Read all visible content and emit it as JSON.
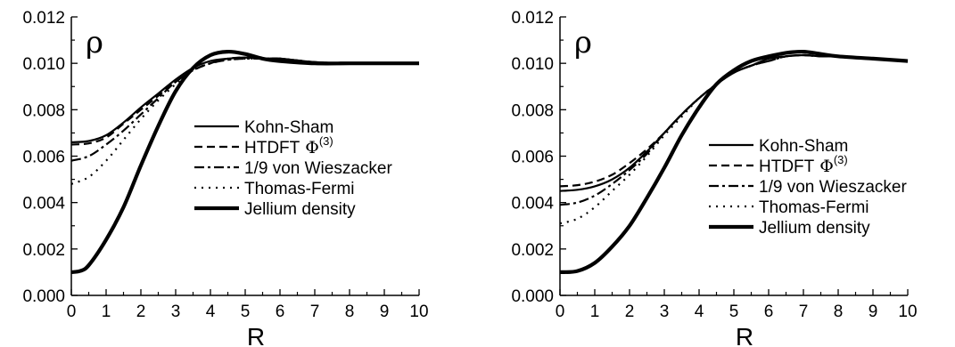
{
  "chart_data": [
    {
      "type": "line",
      "ylabel": "ρ",
      "xlabel": "R",
      "xlim": [
        0,
        10
      ],
      "ylim": [
        0,
        0.012
      ],
      "x_ticks": [
        0,
        1,
        2,
        3,
        4,
        5,
        6,
        7,
        8,
        9,
        10
      ],
      "x_tick_labels": [
        "0",
        "1",
        "2",
        "3",
        "4",
        "5",
        "6",
        "7",
        "8",
        "9",
        "10"
      ],
      "y_ticks": [
        0,
        0.002,
        0.004,
        0.006,
        0.008,
        0.01,
        0.012
      ],
      "y_tick_labels": [
        "0.000",
        "0.002",
        "0.004",
        "0.006",
        "0.008",
        "0.010",
        "0.012"
      ],
      "grid": false,
      "legend_position": "center-right",
      "series": [
        {
          "name": "Kohn-Sham",
          "style": "solid",
          "x": [
            0,
            0.5,
            1,
            1.5,
            2,
            2.5,
            3,
            3.5,
            4,
            4.5,
            5,
            5.5,
            6,
            7,
            8,
            9,
            10
          ],
          "y": [
            0.0066,
            0.00665,
            0.0069,
            0.00745,
            0.0081,
            0.0087,
            0.0093,
            0.0098,
            0.0101,
            0.0102,
            0.01025,
            0.0102,
            0.0102,
            0.01005,
            0.01,
            0.01,
            0.01
          ]
        },
        {
          "name": "HTDFT",
          "name_sup": "(3)",
          "name_symbol": "Φ",
          "style": "dash",
          "x": [
            0,
            0.5,
            1,
            1.5,
            2,
            2.5,
            3,
            3.5,
            4,
            4.5,
            5,
            5.5,
            6,
            7,
            8,
            9,
            10
          ],
          "y": [
            0.0065,
            0.00655,
            0.0068,
            0.0074,
            0.008,
            0.0086,
            0.0092,
            0.0097,
            0.01,
            0.0102,
            0.01025,
            0.0102,
            0.0102,
            0.01005,
            0.01,
            0.01,
            0.01
          ]
        },
        {
          "name": "1/9 von Wieszacker",
          "style": "dashdot",
          "x": [
            0,
            0.5,
            1,
            1.5,
            2,
            2.5,
            3,
            3.5,
            4,
            4.5,
            5,
            5.5,
            6,
            7,
            8,
            9,
            10
          ],
          "y": [
            0.0058,
            0.006,
            0.0065,
            0.0071,
            0.0078,
            0.0085,
            0.0092,
            0.0097,
            0.01,
            0.01015,
            0.0102,
            0.0102,
            0.0102,
            0.01005,
            0.01,
            0.01,
            0.01
          ]
        },
        {
          "name": "Thomas-Fermi",
          "style": "dot",
          "x": [
            0,
            0.5,
            1,
            1.5,
            2,
            2.5,
            3,
            3.5,
            4,
            4.5,
            5,
            5.5,
            6,
            7,
            8,
            9,
            10
          ],
          "y": [
            0.0048,
            0.0051,
            0.0058,
            0.0067,
            0.0076,
            0.0084,
            0.0091,
            0.0097,
            0.01,
            0.01015,
            0.0102,
            0.0102,
            0.0102,
            0.01005,
            0.01,
            0.01,
            0.01
          ]
        },
        {
          "name": "Jellium density",
          "style": "thick",
          "x": [
            0,
            0.25,
            0.5,
            1,
            1.5,
            2,
            2.5,
            3,
            3.5,
            4,
            4.5,
            5,
            5.5,
            6,
            7,
            8,
            9,
            10
          ],
          "y": [
            0.001,
            0.00105,
            0.0013,
            0.0024,
            0.0038,
            0.0056,
            0.0073,
            0.0088,
            0.0098,
            0.01035,
            0.0105,
            0.0104,
            0.0102,
            0.0101,
            0.01,
            0.01,
            0.01,
            0.01
          ]
        }
      ]
    },
    {
      "type": "line",
      "ylabel": "ρ",
      "xlabel": "R",
      "xlim": [
        0,
        10
      ],
      "ylim": [
        0,
        0.012
      ],
      "x_ticks": [
        0,
        1,
        2,
        3,
        4,
        5,
        6,
        7,
        8,
        9,
        10
      ],
      "x_tick_labels": [
        "0",
        "1",
        "2",
        "3",
        "4",
        "5",
        "6",
        "7",
        "8",
        "9",
        "10"
      ],
      "y_ticks": [
        0,
        0.002,
        0.004,
        0.006,
        0.008,
        0.01,
        0.012
      ],
      "y_tick_labels": [
        "0.000",
        "0.002",
        "0.004",
        "0.006",
        "0.008",
        "0.010",
        "0.012"
      ],
      "grid": false,
      "legend_position": "bottom-right",
      "series": [
        {
          "name": "Kohn-Sham",
          "style": "solid",
          "x": [
            0,
            0.5,
            1,
            1.5,
            2,
            2.5,
            3,
            3.5,
            4,
            4.5,
            5,
            5.5,
            6,
            6.5,
            7,
            7.5,
            8,
            9,
            10
          ],
          "y": [
            0.0045,
            0.00455,
            0.0047,
            0.005,
            0.0055,
            0.0062,
            0.007,
            0.0078,
            0.0085,
            0.0091,
            0.0096,
            0.0099,
            0.0102,
            0.0103,
            0.01035,
            0.0103,
            0.0103,
            0.0102,
            0.0101
          ]
        },
        {
          "name": "HTDFT",
          "name_sup": "(3)",
          "name_symbol": "Φ",
          "style": "dash",
          "x": [
            0,
            0.5,
            1,
            1.5,
            2,
            2.5,
            3,
            3.5,
            4,
            4.5,
            5,
            5.5,
            6,
            6.5,
            7,
            7.5,
            8,
            9,
            10
          ],
          "y": [
            0.0047,
            0.00475,
            0.0049,
            0.0052,
            0.0057,
            0.0063,
            0.007,
            0.0078,
            0.0085,
            0.0091,
            0.0096,
            0.0099,
            0.0101,
            0.0103,
            0.01035,
            0.0103,
            0.0103,
            0.0102,
            0.0101
          ]
        },
        {
          "name": "1/9 von Wieszacker",
          "style": "dashdot",
          "x": [
            0,
            0.5,
            1,
            1.5,
            2,
            2.5,
            3,
            3.5,
            4,
            4.5,
            5,
            5.5,
            6,
            6.5,
            7,
            7.5,
            8,
            9,
            10
          ],
          "y": [
            0.0039,
            0.004,
            0.0043,
            0.0048,
            0.0054,
            0.0061,
            0.007,
            0.0078,
            0.0085,
            0.0091,
            0.0096,
            0.0099,
            0.0101,
            0.0103,
            0.01035,
            0.0103,
            0.0103,
            0.0102,
            0.0101
          ]
        },
        {
          "name": "Thomas-Fermi",
          "style": "dot",
          "x": [
            0,
            0.5,
            1,
            1.5,
            2,
            2.5,
            3,
            3.5,
            4,
            4.5,
            5,
            5.5,
            6,
            6.5,
            7,
            7.5,
            8,
            9,
            10
          ],
          "y": [
            0.0031,
            0.0033,
            0.0038,
            0.0045,
            0.0052,
            0.006,
            0.0069,
            0.0077,
            0.0085,
            0.0091,
            0.0096,
            0.0099,
            0.0101,
            0.0103,
            0.01035,
            0.0103,
            0.0103,
            0.0102,
            0.0101
          ]
        },
        {
          "name": "Jellium density",
          "style": "thick",
          "x": [
            0,
            0.5,
            1,
            1.5,
            2,
            2.5,
            3,
            3.5,
            4,
            4.5,
            5,
            5.5,
            6,
            6.5,
            7,
            7.5,
            8,
            9,
            10
          ],
          "y": [
            0.001,
            0.00105,
            0.0014,
            0.0021,
            0.003,
            0.0042,
            0.0055,
            0.0069,
            0.0081,
            0.0091,
            0.0097,
            0.0101,
            0.0103,
            0.01045,
            0.0105,
            0.0104,
            0.0103,
            0.0102,
            0.0101
          ]
        }
      ]
    }
  ]
}
